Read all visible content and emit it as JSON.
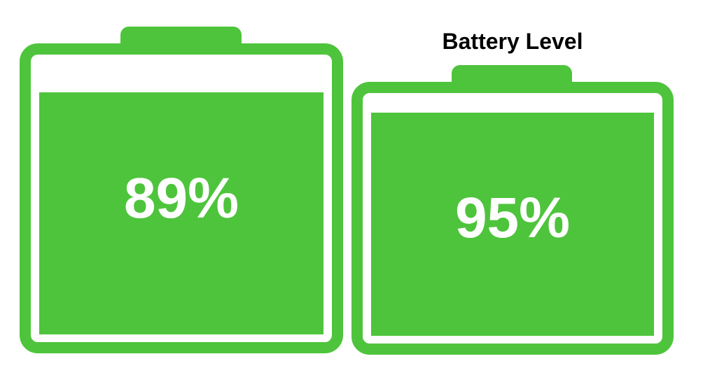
{
  "title": "Battery Level",
  "colors": {
    "battery_green": "#4ec43c",
    "title_text": "#000000",
    "percent_text": "#ffffff",
    "background": "#ffffff"
  },
  "batteries": [
    {
      "label": "89%",
      "percent": 89
    },
    {
      "label": "95%",
      "percent": 95
    }
  ],
  "chart_data": {
    "type": "bar",
    "title": "Battery Level",
    "categories": [
      "left battery",
      "right battery"
    ],
    "values": [
      89,
      95
    ],
    "unit": "percent",
    "value_labels": [
      "89%",
      "95%"
    ],
    "ylim": [
      0,
      100
    ],
    "legend": false,
    "notes": "Pictorial chart: two battery icons whose green fill height encodes the percentage; title appears above the right battery only."
  }
}
